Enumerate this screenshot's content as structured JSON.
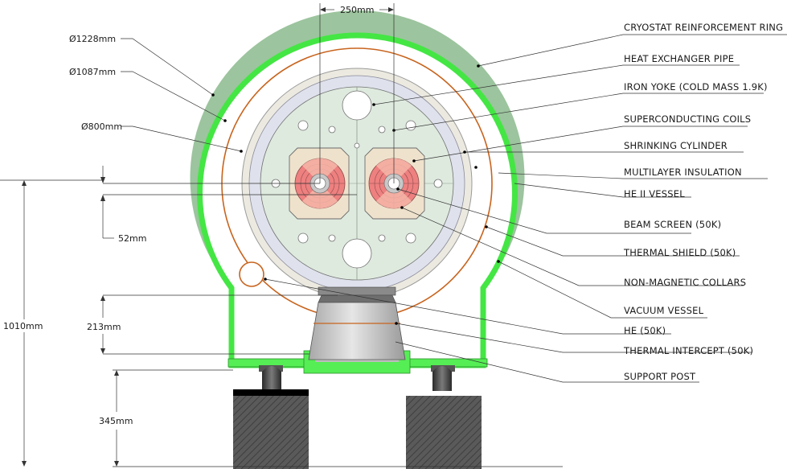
{
  "labels": {
    "cryostat_ring": "CRYOSTAT REINFORCEMENT RING",
    "heat_exchanger": "HEAT EXCHANGER PIPE",
    "iron_yoke": "IRON YOKE (COLD MASS 1.9K)",
    "sc_coils": "SUPERCONDUCTING COILS",
    "shrinking_cyl": "SHRINKING CYLINDER",
    "mli": "MULTILAYER INSULATION",
    "he2_vessel": "HE II VESSEL",
    "beam_screen": "BEAM SCREEN (50K)",
    "thermal_shield": "THERMAL SHIELD (50K)",
    "collars": "NON-MAGNETIC COLLARS",
    "vacuum_vessel": "VACUUM VESSEL",
    "he50": "HE (50K)",
    "thermal_intercept": "THERMAL INTERCEPT (50K)",
    "support_post": "SUPPORT POST"
  },
  "dimensions": {
    "d1228": "Ø1228mm",
    "d1087": "Ø1087mm",
    "d800": "Ø800mm",
    "spacing": "250mm",
    "h52": "52mm",
    "h213": "213mm",
    "h345": "345mm",
    "h1010": "1010mm"
  },
  "colors": {
    "outer_ring": "#9cc49e",
    "vacuum_vessel": "#55ee55",
    "heat_pipe": "#c8641e",
    "yoke": "#dfeadf",
    "shrink_cyl": "#eceae0",
    "insulation": "#dfe2ec",
    "coil": "#ee8080",
    "post": "#c9c9c9"
  }
}
